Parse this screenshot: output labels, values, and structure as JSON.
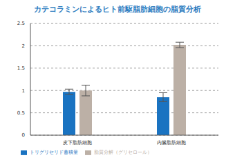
{
  "chart_data": {
    "type": "bar",
    "title": "カテコラミンによるヒト前駆脂肪細胞の脂質分析",
    "categories": [
      "皮下脂肪細胞",
      "内臓脂肪細胞"
    ],
    "series": [
      {
        "name": "トリグリセリド蓄積量",
        "color": "#1a73c1",
        "values": [
          0.97,
          0.85
        ],
        "errors": [
          0.06,
          0.1
        ]
      },
      {
        "name": "脂質分解（グリセロール）",
        "color": "#bcb0a6",
        "values": [
          1.0,
          2.02
        ],
        "errors": [
          0.12,
          0.06
        ]
      }
    ],
    "ylim": [
      0,
      2.5
    ],
    "yticks": [
      0,
      0.5,
      1,
      1.5,
      2,
      2.5
    ],
    "grid": true,
    "legend": "bottom"
  }
}
